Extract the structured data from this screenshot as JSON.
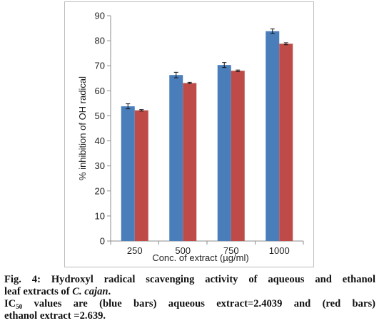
{
  "chart_data": {
    "type": "bar",
    "categories": [
      "250",
      "500",
      "750",
      "1000"
    ],
    "series": [
      {
        "color": "#4a7ebb",
        "values": [
          53.8,
          66.3,
          70.3,
          83.8
        ],
        "errors": [
          1.0,
          1.1,
          1.0,
          0.9
        ]
      },
      {
        "color": "#be4b48",
        "values": [
          52.2,
          63.1,
          68.0,
          78.8
        ],
        "errors": [
          0.3,
          0.3,
          0.3,
          0.4
        ]
      }
    ],
    "xlabel": "Conc. of extract (µg/ml)",
    "ylabel": "% inhibition of OH radical",
    "ylim": [
      0,
      90
    ],
    "yticks": [
      0,
      10,
      20,
      30,
      40,
      50,
      60,
      70,
      80,
      90
    ],
    "grid": false,
    "legend": "none"
  },
  "caption": {
    "line1": "Fig. 4: Hydroxyl radical scavenging activity of aqueous and ethanol",
    "line2_prefix": "leaf extracts of ",
    "line2_species": "C. cajan",
    "line2_suffix": ".",
    "line3_ic": "IC",
    "line3_sub": "50",
    "line3_rest": " values are (blue bars) aqueous extract=2.4039 and (red bars)",
    "line4": "ethanol extract =2.639."
  }
}
